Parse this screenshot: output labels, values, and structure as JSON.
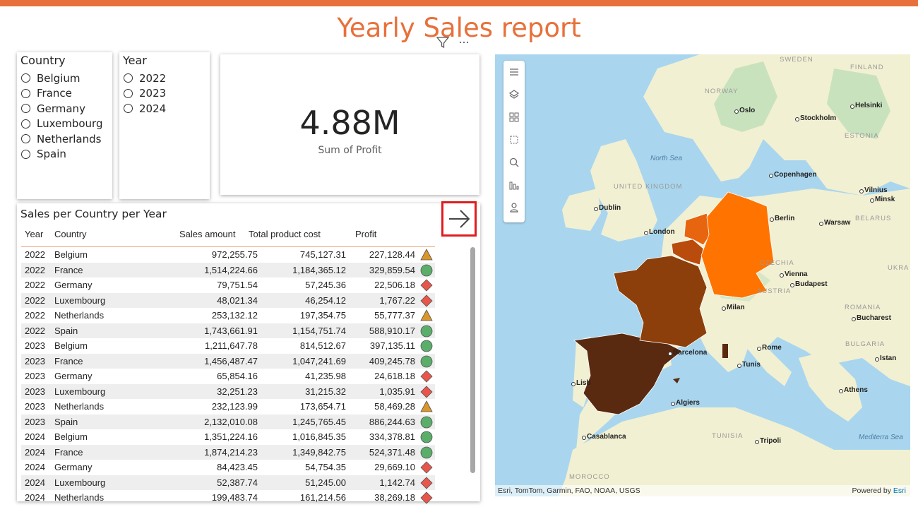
{
  "report": {
    "title": "Yearly Sales report",
    "accent": "#E8703A"
  },
  "header_icons": {
    "filter_icon": "filter-icon",
    "more_icon": "more-options-icon",
    "more_symbol": "···"
  },
  "country_slicer": {
    "title": "Country",
    "options": [
      "Belgium",
      "France",
      "Germany",
      "Luxembourg",
      "Netherlands",
      "Spain"
    ]
  },
  "year_slicer": {
    "title": "Year",
    "options": [
      "2022",
      "2023",
      "2024"
    ]
  },
  "kpi": {
    "value": "4.88M",
    "label": "Sum of Profit"
  },
  "table": {
    "title": "Sales per Country per Year",
    "columns": [
      "Year",
      "Country",
      "Sales amount",
      "Total product cost",
      "Profit"
    ],
    "rows": [
      {
        "year": "2022",
        "country": "Belgium",
        "sales": "972,255.75",
        "cost": "745,127.31",
        "profit": "227,128.44",
        "status": "triangle"
      },
      {
        "year": "2022",
        "country": "France",
        "sales": "1,514,224.66",
        "cost": "1,184,365.12",
        "profit": "329,859.54",
        "status": "circle"
      },
      {
        "year": "2022",
        "country": "Germany",
        "sales": "79,751.54",
        "cost": "57,245.36",
        "profit": "22,506.18",
        "status": "diamond"
      },
      {
        "year": "2022",
        "country": "Luxembourg",
        "sales": "48,021.34",
        "cost": "46,254.12",
        "profit": "1,767.22",
        "status": "diamond"
      },
      {
        "year": "2022",
        "country": "Netherlands",
        "sales": "253,132.12",
        "cost": "197,354.75",
        "profit": "55,777.37",
        "status": "triangle"
      },
      {
        "year": "2022",
        "country": "Spain",
        "sales": "1,743,661.91",
        "cost": "1,154,751.74",
        "profit": "588,910.17",
        "status": "circle"
      },
      {
        "year": "2023",
        "country": "Belgium",
        "sales": "1,211,647.78",
        "cost": "814,512.67",
        "profit": "397,135.11",
        "status": "circle"
      },
      {
        "year": "2023",
        "country": "France",
        "sales": "1,456,487.47",
        "cost": "1,047,241.69",
        "profit": "409,245.78",
        "status": "circle"
      },
      {
        "year": "2023",
        "country": "Germany",
        "sales": "65,854.16",
        "cost": "41,235.98",
        "profit": "24,618.18",
        "status": "diamond"
      },
      {
        "year": "2023",
        "country": "Luxembourg",
        "sales": "32,251.23",
        "cost": "31,215.32",
        "profit": "1,035.91",
        "status": "diamond"
      },
      {
        "year": "2023",
        "country": "Netherlands",
        "sales": "232,123.99",
        "cost": "173,654.71",
        "profit": "58,469.28",
        "status": "triangle"
      },
      {
        "year": "2023",
        "country": "Spain",
        "sales": "2,132,010.08",
        "cost": "1,245,765.45",
        "profit": "886,244.63",
        "status": "circle"
      },
      {
        "year": "2024",
        "country": "Belgium",
        "sales": "1,351,224.16",
        "cost": "1,016,845.35",
        "profit": "334,378.81",
        "status": "circle"
      },
      {
        "year": "2024",
        "country": "France",
        "sales": "1,874,214.23",
        "cost": "1,349,842.75",
        "profit": "524,371.48",
        "status": "circle"
      },
      {
        "year": "2024",
        "country": "Germany",
        "sales": "84,423.45",
        "cost": "54,754.35",
        "profit": "29,669.10",
        "status": "diamond"
      },
      {
        "year": "2024",
        "country": "Luxembourg",
        "sales": "52,387.74",
        "cost": "51,245.00",
        "profit": "1,142.74",
        "status": "diamond"
      },
      {
        "year": "2024",
        "country": "Netherlands",
        "sales": "199,483.74",
        "cost": "161,214.56",
        "profit": "38,269.18",
        "status": "diamond"
      }
    ],
    "status_colors": {
      "triangle": "#D9962A",
      "circle": "#5BAE6A",
      "diamond": "#E8554A"
    }
  },
  "expand_button": {
    "icon": "arrow-right-icon"
  },
  "map": {
    "tools": [
      "menu-icon",
      "layers-icon",
      "qr-icon",
      "select-rect-icon",
      "search-icon",
      "bars-icon",
      "person-icon"
    ],
    "attribution_left": "Esri, TomTom, Garmin, FAO, NOAA, USGS",
    "attribution_right_prefix": "Powered by ",
    "attribution_right_link": "Esri",
    "country_colors": {
      "Germany": "#FF7300",
      "Netherlands": "#E8650F",
      "Belgium": "#B94B0C",
      "Luxembourg": "#B94B0C",
      "France": "#8C3F0A",
      "Spain": "#5A2A10"
    },
    "city_labels": [
      "Oslo",
      "Stockholm",
      "Helsinki",
      "Copenhagen",
      "Dublin",
      "London",
      "Berlin",
      "Warsaw",
      "Minsk",
      "Vilnius",
      "Vienna",
      "Budapest",
      "Milan",
      "Rome",
      "Barcelona",
      "Bucharest",
      "Istan",
      "Athens",
      "Algiers",
      "Tunis",
      "Tripoli",
      "Casablanca",
      "Lisb"
    ],
    "country_labels": [
      "SWEDEN",
      "FINLAND",
      "NORWAY",
      "ESTONIA",
      "UNITED KINGDOM",
      "BELARUS",
      "CZECHIA",
      "UKRA",
      "AUSTRIA",
      "ROMANIA",
      "BULGARIA",
      "MOROCCO",
      "TUNISIA"
    ],
    "sea_labels": [
      "North Sea",
      "Mediterra Sea"
    ]
  }
}
